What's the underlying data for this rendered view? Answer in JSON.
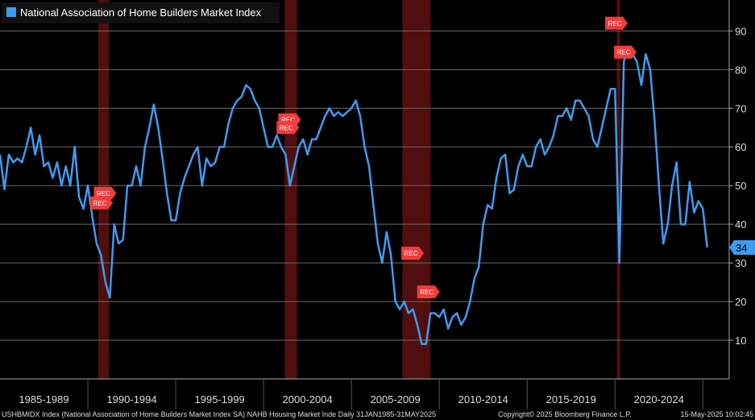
{
  "chart_data": {
    "type": "line",
    "legend": "top-left",
    "grid": true,
    "xlim": [
      1985,
      2026.5
    ],
    "ylim": [
      0,
      98
    ],
    "yticks": [
      10,
      20,
      30,
      40,
      50,
      60,
      70,
      80,
      90
    ],
    "periods": [
      "1985-1989",
      "1990-1994",
      "1995-1999",
      "2000-2004",
      "2005-2009",
      "2010-2014",
      "2015-2019",
      "2020-2024"
    ],
    "period_starts": [
      1985,
      1990,
      1995,
      2000,
      2005,
      2010,
      2015,
      2020,
      2025
    ],
    "recessions": [
      [
        1990.6,
        1991.2
      ],
      [
        2001.2,
        2001.9
      ],
      [
        2007.9,
        2009.5
      ],
      [
        2020.1,
        2020.3
      ]
    ],
    "annotations": [
      {
        "text": "REC",
        "x": 1990.8,
        "y": 48
      },
      {
        "text": "REC",
        "x": 1990.6,
        "y": 45.5
      },
      {
        "text": "REC",
        "x": 2001.3,
        "y": 67
      },
      {
        "text": "REC",
        "x": 2001.2,
        "y": 65
      },
      {
        "text": "REC",
        "x": 2008.3,
        "y": 32.5
      },
      {
        "text": "REC",
        "x": 2009.2,
        "y": 22.5
      },
      {
        "text": "REC",
        "x": 2019.9,
        "y": 92
      },
      {
        "text": "REC",
        "x": 2020.4,
        "y": 84.5
      }
    ],
    "footer": {
      "left": "USHBMIDX Index (National Association of Home Builders Market Index SA) NAHB Housing Market Inde  Daily 31JAN1985-31MAY2025",
      "center": "Copyright© 2025 Bloomberg Finance L.P.",
      "right": "15-May-2025 10:02:45"
    },
    "x": [
      1985,
      1985.25,
      1985.5,
      1985.75,
      1986,
      1986.25,
      1986.5,
      1986.75,
      1987,
      1987.25,
      1987.5,
      1987.75,
      1988,
      1988.25,
      1988.5,
      1988.75,
      1989,
      1989.25,
      1989.5,
      1989.75,
      1990,
      1990.25,
      1990.5,
      1990.75,
      1991,
      1991.25,
      1991.5,
      1991.75,
      1992,
      1992.25,
      1992.5,
      1992.75,
      1993,
      1993.25,
      1993.5,
      1993.75,
      1994,
      1994.25,
      1994.5,
      1994.75,
      1995,
      1995.25,
      1995.5,
      1995.75,
      1996,
      1996.25,
      1996.5,
      1996.75,
      1997,
      1997.25,
      1997.5,
      1997.75,
      1998,
      1998.25,
      1998.5,
      1998.75,
      1999,
      1999.25,
      1999.5,
      1999.75,
      2000,
      2000.25,
      2000.5,
      2000.75,
      2001,
      2001.25,
      2001.5,
      2001.75,
      2002,
      2002.25,
      2002.5,
      2002.75,
      2003,
      2003.25,
      2003.5,
      2003.75,
      2004,
      2004.25,
      2004.5,
      2004.75,
      2005,
      2005.25,
      2005.5,
      2005.75,
      2006,
      2006.25,
      2006.5,
      2006.75,
      2007,
      2007.25,
      2007.5,
      2007.75,
      2008,
      2008.25,
      2008.5,
      2008.75,
      2009,
      2009.25,
      2009.5,
      2009.75,
      2010,
      2010.25,
      2010.5,
      2010.75,
      2011,
      2011.25,
      2011.5,
      2011.75,
      2012,
      2012.25,
      2012.5,
      2012.75,
      2013,
      2013.25,
      2013.5,
      2013.75,
      2014,
      2014.25,
      2014.5,
      2014.75,
      2015,
      2015.25,
      2015.5,
      2015.75,
      2016,
      2016.25,
      2016.5,
      2016.75,
      2017,
      2017.25,
      2017.5,
      2017.75,
      2018,
      2018.25,
      2018.5,
      2018.75,
      2019,
      2019.25,
      2019.5,
      2019.75,
      2020,
      2020.25,
      2020.5,
      2020.75,
      2021,
      2021.25,
      2021.5,
      2021.75,
      2022,
      2022.25,
      2022.5,
      2022.75,
      2023,
      2023.25,
      2023.5,
      2023.75,
      2024,
      2024.25,
      2024.5,
      2024.75,
      2025,
      2025.25
    ],
    "series": [
      {
        "name": "National Association of Home Builders Market Index",
        "color": "#3d9bf0",
        "last_label": "34",
        "values": [
          58,
          49,
          58,
          56,
          57,
          56,
          60,
          65,
          58,
          63,
          55,
          56,
          52,
          56,
          50,
          55,
          50,
          60,
          47,
          44,
          50,
          42,
          35,
          32,
          25,
          21,
          40,
          35,
          36,
          50,
          50,
          55,
          50,
          60,
          65,
          71,
          65,
          57,
          48,
          41,
          41,
          48,
          52,
          55,
          58,
          60,
          50,
          57,
          55,
          56,
          60,
          60,
          66,
          70,
          72,
          73,
          76,
          75,
          72,
          70,
          65,
          60,
          60,
          63,
          60,
          58,
          50,
          55,
          60,
          62,
          58,
          62,
          62,
          65,
          68,
          70,
          68,
          69,
          68,
          69,
          70,
          72,
          68,
          60,
          55,
          45,
          35,
          30,
          38,
          32,
          20,
          18,
          20,
          17,
          18,
          14,
          9,
          9,
          17,
          17,
          16,
          18,
          13,
          16,
          17,
          14,
          16,
          20,
          26,
          29,
          40,
          45,
          44,
          52,
          57,
          58,
          48,
          49,
          55,
          58,
          55,
          55,
          60,
          62,
          58,
          60,
          63,
          68,
          68,
          70,
          67,
          72,
          72,
          70,
          68,
          62,
          60,
          65,
          70,
          75,
          75,
          30,
          82,
          86,
          84,
          82,
          76,
          84,
          80,
          67,
          50,
          35,
          40,
          50,
          56,
          40,
          40,
          51,
          43,
          46,
          44,
          34
        ]
      }
    ]
  }
}
